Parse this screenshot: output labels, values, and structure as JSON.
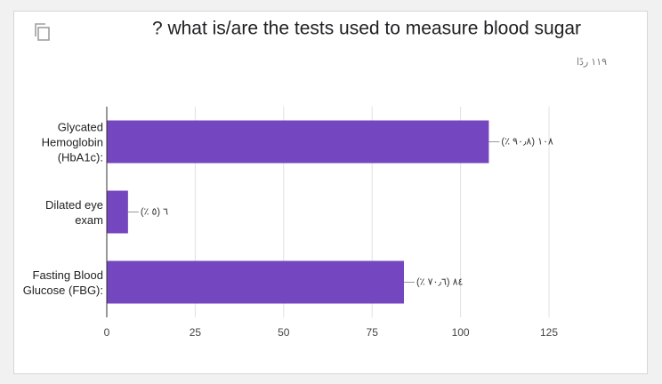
{
  "chart_data": {
    "type": "bar",
    "orientation": "horizontal",
    "title": "? what is/are the tests used to measure blood sugar",
    "subtitle": "١١٩ ردًا",
    "categories": [
      "Glycated Hemoglobin (HbA1c):",
      "Dilated eye exam",
      "Fasting Blood Glucose (FBG):"
    ],
    "values": [
      108,
      6,
      84
    ],
    "value_labels": [
      "١٠٨ (٩٠٫٨ ٪)",
      "٦ (٥ ٪)",
      "٨٤ (٧٠٫٦ ٪)"
    ],
    "color": "#7446bf",
    "xlim": [
      0,
      125
    ],
    "xticks": [
      0,
      25,
      50,
      75,
      100,
      125
    ],
    "grid": true
  }
}
